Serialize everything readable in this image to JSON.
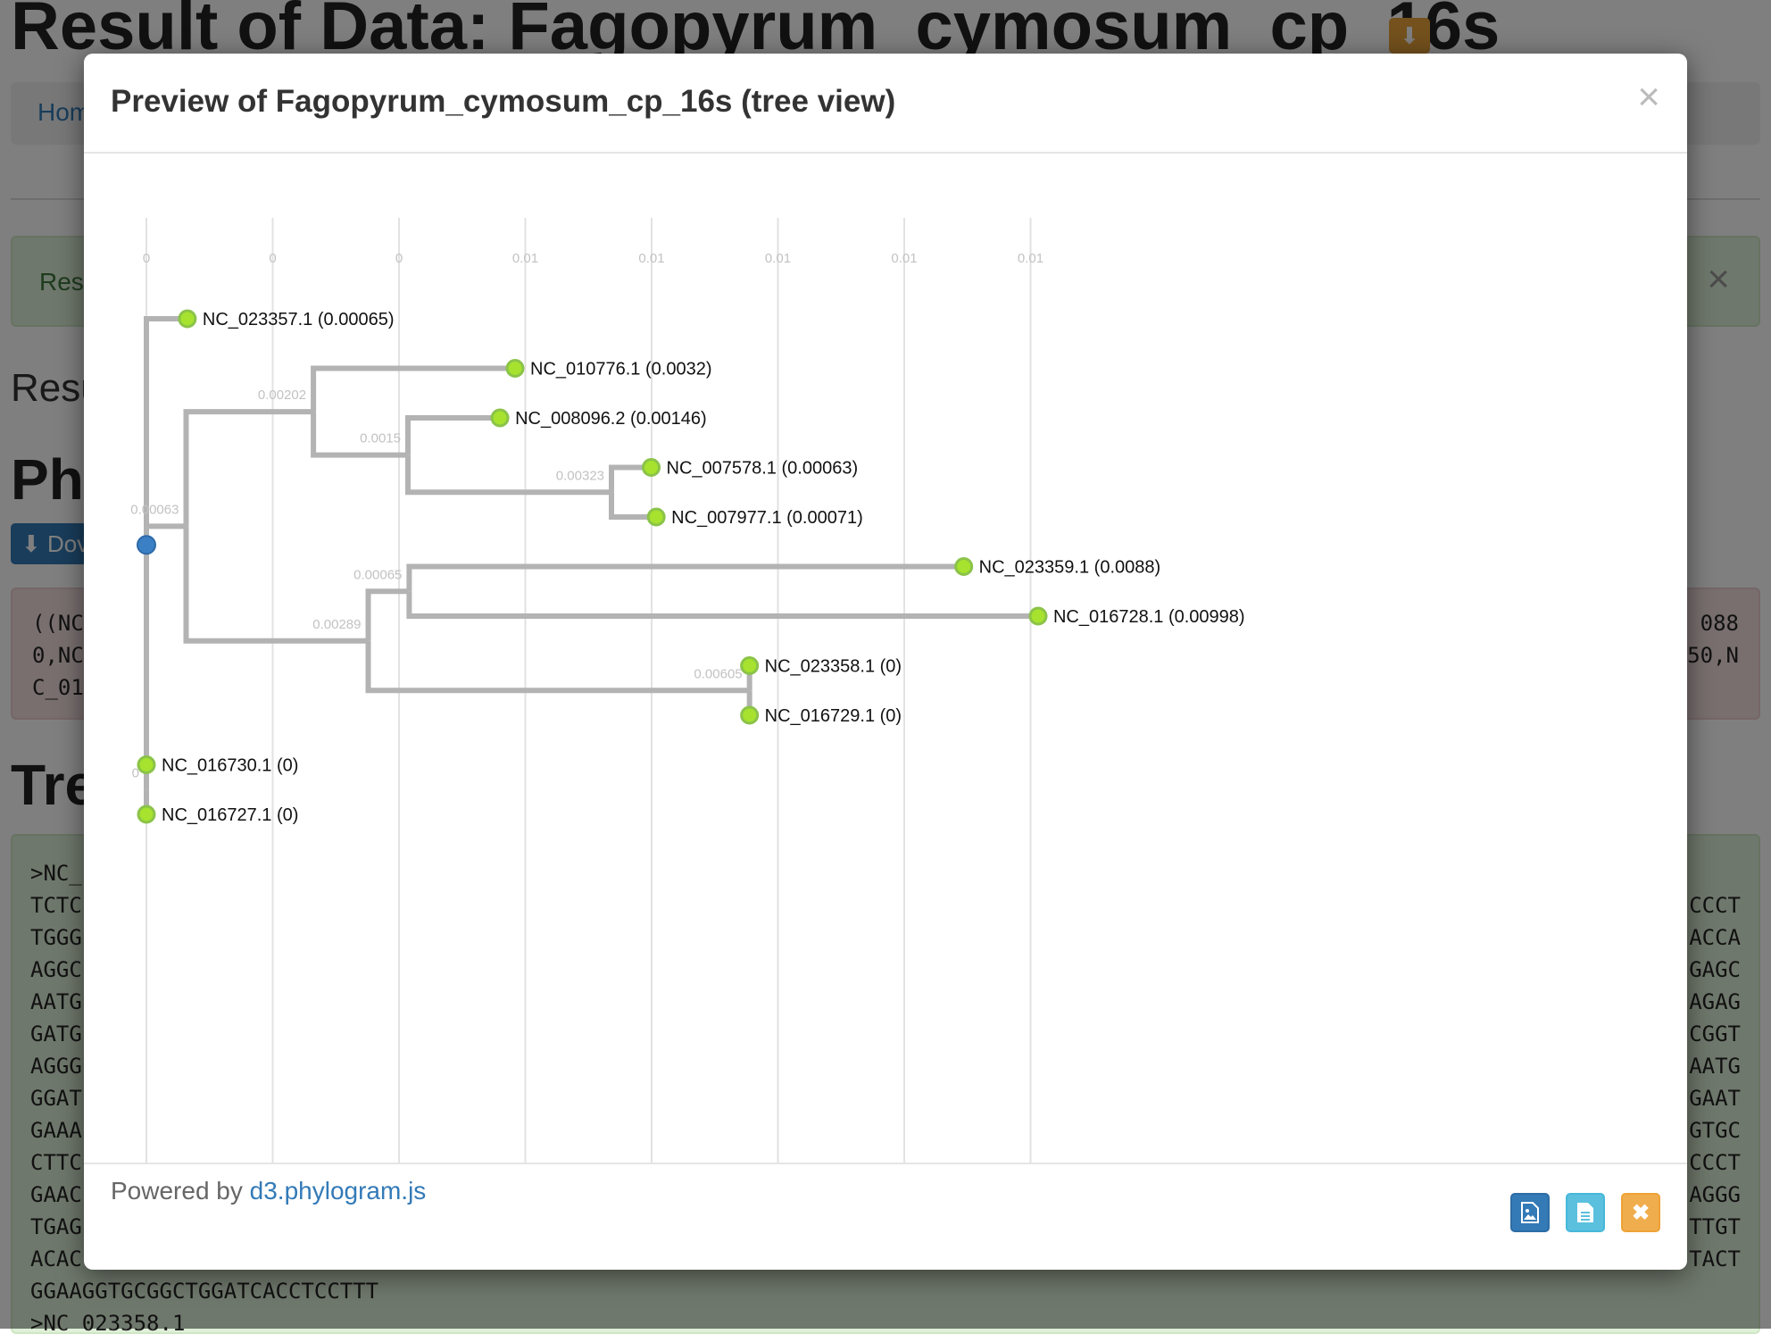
{
  "background": {
    "page_title": "Result of Data: Fagopyrum_cymosum_cp_16s",
    "breadcrumb_home": "Hom",
    "alert_text": "Res",
    "results_heading": "Resu",
    "phylo_heading": "Phy",
    "download_label": "Dov",
    "newick_left": [
      "((NC",
      "0,NC",
      "C_01"
    ],
    "newick_right": [
      "088",
      "50,N",
      ""
    ],
    "tree_heading": "Tre",
    "fasta_rows": [
      {
        "left": ">NC_",
        "right": ""
      },
      {
        "left": "TCTC",
        "right": "CCCT"
      },
      {
        "left": "TGGG",
        "right": "ACCA"
      },
      {
        "left": "AGGC",
        "right": "GAGC"
      },
      {
        "left": "AATG",
        "right": "AGAG"
      },
      {
        "left": "GATG",
        "right": "CGGT"
      },
      {
        "left": "AGGG",
        "right": "AATG"
      },
      {
        "left": "GGAT",
        "right": "GAAT"
      },
      {
        "left": "GAAA",
        "right": "GTGC"
      },
      {
        "left": "CTTC",
        "right": "CCCT"
      },
      {
        "left": "GAAC",
        "right": "AGGG"
      },
      {
        "left": "TGAG",
        "right": "TTGT"
      },
      {
        "left": "ACAC",
        "right": "TACT"
      },
      {
        "left": "GGAAGGTGCGGCTGGATCACCTCCTTT",
        "right": ""
      },
      {
        "left": ">NC_023358.1",
        "right": ""
      }
    ]
  },
  "modal": {
    "title": "Preview of Fagopyrum_cymosum_cp_16s (tree view)",
    "close_symbol": "×",
    "footer_powered": "Powered by",
    "footer_link": "d3.phylogram.js",
    "buttons": {
      "image": "image-icon",
      "document": "document-icon",
      "close": "✖"
    }
  },
  "chart_data": {
    "type": "phylogram",
    "axis_ticks": [
      "0",
      "0",
      "0",
      "0.01",
      "0.01",
      "0.01",
      "0.01",
      "0.01"
    ],
    "xlim": [
      0,
      0.014
    ],
    "internal_nodes": [
      {
        "id": "root",
        "parent": null,
        "length": 0,
        "label": ""
      },
      {
        "id": "A",
        "parent": "root",
        "length": 0.00063,
        "label": "0.00063"
      },
      {
        "id": "A1",
        "parent": "A",
        "length": 0.00202,
        "label": "0.00202"
      },
      {
        "id": "A1b",
        "parent": "A1",
        "length": 0.0015,
        "label": "0.0015"
      },
      {
        "id": "A1b2",
        "parent": "A1b",
        "length": 0.00323,
        "label": "0.00323"
      },
      {
        "id": "A2",
        "parent": "A",
        "length": 0.00289,
        "label": "0.00289"
      },
      {
        "id": "A2a",
        "parent": "A2",
        "length": 0.00065,
        "label": "0.00065"
      },
      {
        "id": "A2b",
        "parent": "A2",
        "length": 0.00605,
        "label": "0.00605"
      },
      {
        "id": "B",
        "parent": "root",
        "length": 0,
        "label": "0"
      }
    ],
    "leaves": [
      {
        "name": "NC_023357.1 (0.00065)",
        "parent": "root",
        "length": 0.00065
      },
      {
        "name": "NC_010776.1 (0.0032)",
        "parent": "A1",
        "length": 0.0032
      },
      {
        "name": "NC_008096.2 (0.00146)",
        "parent": "A1b",
        "length": 0.00146
      },
      {
        "name": "NC_007578.1 (0.00063)",
        "parent": "A1b2",
        "length": 0.00063
      },
      {
        "name": "NC_007977.1 (0.00071)",
        "parent": "A1b2",
        "length": 0.00071
      },
      {
        "name": "NC_023359.1 (0.0088)",
        "parent": "A2a",
        "length": 0.0088
      },
      {
        "name": "NC_016728.1 (0.00998)",
        "parent": "A2a",
        "length": 0.00998
      },
      {
        "name": "NC_023358.1 (0)",
        "parent": "A2b",
        "length": 0
      },
      {
        "name": "NC_016729.1 (0)",
        "parent": "A2b",
        "length": 0
      },
      {
        "name": "NC_016730.1 (0)",
        "parent": "B",
        "length": 0
      },
      {
        "name": "NC_016727.1 (0)",
        "parent": "B",
        "length": 0
      }
    ],
    "colors": {
      "branch": "#b3b3b3",
      "leaf_fill": "#a6e22e",
      "leaf_stroke": "#8bc34a",
      "root_fill": "#3b7fc4",
      "grid": "#e2e2e2",
      "label": "#c2c2c2"
    }
  }
}
